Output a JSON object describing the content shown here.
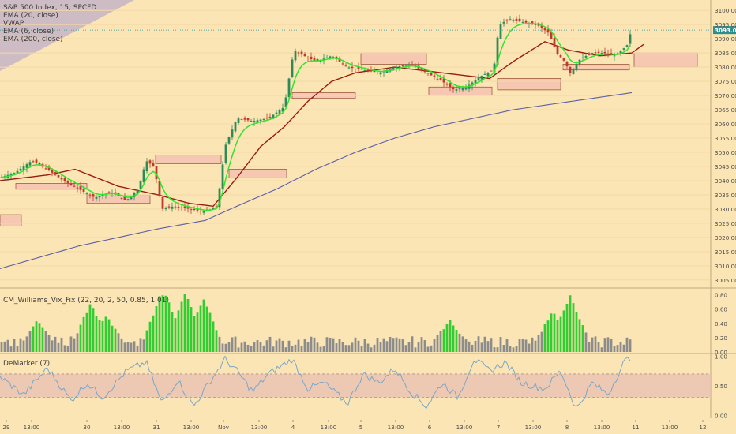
{
  "header": {
    "symbol_title": "S&P 500 Index, 15, SPCFD",
    "studies": [
      "EMA (20, close)",
      "VWAP",
      "EMA (6, close)",
      "EMA (200, close)"
    ]
  },
  "panes": {
    "vix_label": "CM_Williams_Vix_Fix (22, 20, 2, 50, 0.85, 1.01)",
    "demarker_label": "DeMarker (7)"
  },
  "colors": {
    "background": "#fce5b4",
    "candle_up": "#2e8b57",
    "candle_down": "#c0392b",
    "ema_fast": "#2fe52f",
    "ema_slow": "#9b1c10",
    "ema_200": "#5b5fa8",
    "zones": "#f6c8b2",
    "vix_high": "#33cc33",
    "vix_normal": "#8c8c8c",
    "demarker_line": "#7aa7c7",
    "price_tag": "#2a8f8f"
  },
  "chart_data": {
    "type": "candlestick",
    "price_axis": {
      "ticks": [
        "3100.00",
        "3095.00",
        "3090.00",
        "3085.00",
        "3080.00",
        "3075.00",
        "3070.00",
        "3065.00",
        "3060.00",
        "3055.00",
        "3050.00",
        "3045.00",
        "3040.00",
        "3035.00",
        "3030.00",
        "3025.00",
        "3020.00",
        "3015.00",
        "3010.00",
        "3005.00"
      ],
      "range": [
        3003,
        3102
      ],
      "last_price": "3093.06"
    },
    "vix_axis": {
      "ticks": [
        "0.80",
        "0.60",
        "0.40",
        "0.20",
        "0.00"
      ],
      "range": [
        0,
        0.85
      ]
    },
    "demarker_axis": {
      "ticks": [
        "1.00",
        "0.50",
        "0.00"
      ],
      "range": [
        -0.05,
        1.02
      ],
      "band": [
        0.3,
        0.7
      ]
    },
    "time_axis": [
      "29",
      "13:00",
      "30",
      "13:00",
      "31",
      "13:00",
      "Nov",
      "13:00",
      "4",
      "13:00",
      "5",
      "13:00",
      "6",
      "13:00",
      "7",
      "13:00",
      "8",
      "13:00",
      "11",
      "13:00",
      "12"
    ],
    "price_anchors": [
      [
        0,
        3041
      ],
      [
        20,
        3043
      ],
      [
        40,
        3047
      ],
      [
        60,
        3044
      ],
      [
        80,
        3040
      ],
      [
        100,
        3037
      ],
      [
        120,
        3034
      ],
      [
        140,
        3036
      ],
      [
        160,
        3033
      ],
      [
        175,
        3037
      ],
      [
        185,
        3047
      ],
      [
        195,
        3045
      ],
      [
        205,
        3030
      ],
      [
        220,
        3031
      ],
      [
        240,
        3030
      ],
      [
        260,
        3029
      ],
      [
        275,
        3031
      ],
      [
        285,
        3052
      ],
      [
        300,
        3062
      ],
      [
        320,
        3061
      ],
      [
        340,
        3062
      ],
      [
        360,
        3066
      ],
      [
        372,
        3086
      ],
      [
        385,
        3084
      ],
      [
        400,
        3082
      ],
      [
        420,
        3084
      ],
      [
        440,
        3080
      ],
      [
        460,
        3079
      ],
      [
        480,
        3078
      ],
      [
        500,
        3080
      ],
      [
        520,
        3081
      ],
      [
        540,
        3078
      ],
      [
        560,
        3075
      ],
      [
        575,
        3072
      ],
      [
        590,
        3073
      ],
      [
        610,
        3077
      ],
      [
        625,
        3079
      ],
      [
        632,
        3095
      ],
      [
        645,
        3097
      ],
      [
        660,
        3096
      ],
      [
        680,
        3095
      ],
      [
        695,
        3092
      ],
      [
        705,
        3085
      ],
      [
        715,
        3082
      ],
      [
        722,
        3078
      ],
      [
        735,
        3083
      ],
      [
        750,
        3085
      ],
      [
        765,
        3085
      ],
      [
        780,
        3084
      ],
      [
        795,
        3088
      ],
      [
        800,
        3094
      ]
    ],
    "ema_slow_anchors": [
      [
        0,
        3040
      ],
      [
        60,
        3042
      ],
      [
        95,
        3044
      ],
      [
        150,
        3038
      ],
      [
        200,
        3035
      ],
      [
        240,
        3032
      ],
      [
        270,
        3031
      ],
      [
        300,
        3041
      ],
      [
        330,
        3052
      ],
      [
        360,
        3059
      ],
      [
        390,
        3068
      ],
      [
        420,
        3075
      ],
      [
        450,
        3078
      ],
      [
        500,
        3080
      ],
      [
        560,
        3078
      ],
      [
        620,
        3076
      ],
      [
        650,
        3082
      ],
      [
        690,
        3089
      ],
      [
        720,
        3086
      ],
      [
        760,
        3084
      ],
      [
        800,
        3085
      ],
      [
        815,
        3088
      ]
    ],
    "ema_200_anchors": [
      [
        0,
        3009
      ],
      [
        100,
        3017
      ],
      [
        200,
        3023
      ],
      [
        260,
        3026
      ],
      [
        300,
        3031
      ],
      [
        350,
        3037
      ],
      [
        400,
        3044
      ],
      [
        450,
        3050
      ],
      [
        500,
        3055
      ],
      [
        550,
        3059
      ],
      [
        600,
        3062
      ],
      [
        650,
        3065
      ],
      [
        700,
        3067
      ],
      [
        750,
        3069
      ],
      [
        800,
        3071
      ]
    ],
    "vwap_price": 3093.06,
    "zones": [
      [
        0,
        3028,
        3024,
        27
      ],
      [
        20,
        3039,
        3037,
        90
      ],
      [
        110,
        3035,
        3032,
        80
      ],
      [
        197,
        3049,
        3046,
        83
      ],
      [
        290,
        3044,
        3041,
        73
      ],
      [
        370,
        3071,
        3069,
        80
      ],
      [
        457,
        3085,
        3081,
        83
      ],
      [
        543,
        3073,
        3070,
        80
      ],
      [
        630,
        3076,
        3072,
        80
      ],
      [
        713,
        3081,
        3079,
        84
      ],
      [
        803,
        3085,
        3080,
        80
      ]
    ],
    "vix_spikes": [
      [
        48,
        0.42
      ],
      [
        115,
        0.65
      ],
      [
        135,
        0.48
      ],
      [
        205,
        0.82
      ],
      [
        210,
        0.78
      ],
      [
        235,
        0.82
      ],
      [
        258,
        0.7
      ],
      [
        570,
        0.43
      ],
      [
        700,
        0.55
      ],
      [
        722,
        0.78
      ]
    ],
    "demarker_anchors": [
      [
        0,
        0.65
      ],
      [
        30,
        0.35
      ],
      [
        60,
        0.8
      ],
      [
        90,
        0.25
      ],
      [
        110,
        0.55
      ],
      [
        130,
        0.3
      ],
      [
        160,
        0.75
      ],
      [
        185,
        0.9
      ],
      [
        205,
        0.2
      ],
      [
        225,
        0.6
      ],
      [
        245,
        0.15
      ],
      [
        265,
        0.55
      ],
      [
        285,
        0.95
      ],
      [
        300,
        0.75
      ],
      [
        320,
        0.4
      ],
      [
        340,
        0.7
      ],
      [
        370,
        0.95
      ],
      [
        390,
        0.45
      ],
      [
        410,
        0.55
      ],
      [
        440,
        0.2
      ],
      [
        460,
        0.7
      ],
      [
        480,
        0.55
      ],
      [
        500,
        0.8
      ],
      [
        520,
        0.4
      ],
      [
        540,
        0.15
      ],
      [
        560,
        0.55
      ],
      [
        580,
        0.3
      ],
      [
        600,
        0.95
      ],
      [
        620,
        0.75
      ],
      [
        640,
        0.9
      ],
      [
        660,
        0.55
      ],
      [
        690,
        0.45
      ],
      [
        710,
        0.75
      ],
      [
        730,
        0.1
      ],
      [
        750,
        0.55
      ],
      [
        770,
        0.35
      ],
      [
        790,
        0.9
      ],
      [
        800,
        0.99
      ]
    ]
  }
}
